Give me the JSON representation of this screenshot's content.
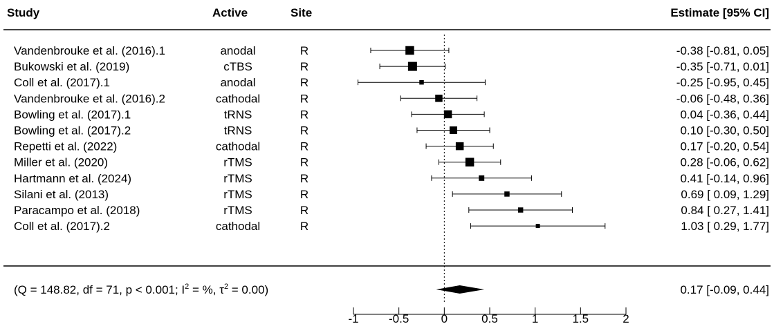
{
  "chart_data": {
    "type": "forest",
    "headers": {
      "study": "Study",
      "active": "Active",
      "site": "Site",
      "estimate": "Estimate [95% CI]"
    },
    "studies": [
      {
        "study": "Vandenbrouke et al. (2016).1",
        "active": "anodal",
        "site": "R",
        "estimate": -0.38,
        "lower": -0.81,
        "upper": 0.05,
        "label": "-0.38 [-0.81, 0.05]",
        "weight": 0.95
      },
      {
        "study": "Bukowski et al. (2019)",
        "active": "cTBS",
        "site": "R",
        "estimate": -0.35,
        "lower": -0.71,
        "upper": 0.01,
        "label": "-0.35 [-0.71, 0.01]",
        "weight": 1.0
      },
      {
        "study": "Coll et al. (2017).1",
        "active": "anodal",
        "site": "R",
        "estimate": -0.25,
        "lower": -0.95,
        "upper": 0.45,
        "label": "-0.25 [-0.95, 0.45]",
        "weight": 0.35
      },
      {
        "study": "Vandenbrouke et al. (2016).2",
        "active": "cathodal",
        "site": "R",
        "estimate": -0.06,
        "lower": -0.48,
        "upper": 0.36,
        "label": "-0.06 [-0.48, 0.36]",
        "weight": 0.75
      },
      {
        "study": "Bowling et al. (2017).1",
        "active": "tRNS",
        "site": "R",
        "estimate": 0.04,
        "lower": -0.36,
        "upper": 0.44,
        "label": "0.04 [-0.36, 0.44]",
        "weight": 0.85
      },
      {
        "study": "Bowling et al. (2017).2",
        "active": "tRNS",
        "site": "R",
        "estimate": 0.1,
        "lower": -0.3,
        "upper": 0.5,
        "label": "0.10 [-0.30, 0.50]",
        "weight": 0.8
      },
      {
        "study": "Repetti et al. (2022)",
        "active": "cathodal",
        "site": "R",
        "estimate": 0.17,
        "lower": -0.2,
        "upper": 0.54,
        "label": "0.17 [-0.20, 0.54]",
        "weight": 0.85
      },
      {
        "study": "Miller et al. (2020)",
        "active": "rTMS",
        "site": "R",
        "estimate": 0.28,
        "lower": -0.06,
        "upper": 0.62,
        "label": "0.28 [-0.06, 0.62]",
        "weight": 0.95
      },
      {
        "study": "Hartmann et al. (2024)",
        "active": "rTMS",
        "site": "R",
        "estimate": 0.41,
        "lower": -0.14,
        "upper": 0.96,
        "label": "0.41 [-0.14, 0.96]",
        "weight": 0.5
      },
      {
        "study": "Silani et al. (2013)",
        "active": "rTMS",
        "site": "R",
        "estimate": 0.69,
        "lower": 0.09,
        "upper": 1.29,
        "label": "0.69 [ 0.09, 1.29]",
        "weight": 0.45
      },
      {
        "study": "Paracampo et al. (2018)",
        "active": "rTMS",
        "site": "R",
        "estimate": 0.84,
        "lower": 0.27,
        "upper": 1.41,
        "label": "0.84 [ 0.27, 1.41]",
        "weight": 0.45
      },
      {
        "study": "Coll et al. (2017).2",
        "active": "cathodal",
        "site": "R",
        "estimate": 1.03,
        "lower": 0.29,
        "upper": 1.77,
        "label": "1.03 [ 0.29, 1.77]",
        "weight": 0.3
      }
    ],
    "summary": {
      "stat_text": "(Q = 148.82, df = 71, p < 0.001; I",
      "sup1": "2",
      "mid_text": " = %, τ",
      "sup2": "2",
      "end_text": " = 0.00)",
      "estimate": 0.17,
      "lower": -0.09,
      "upper": 0.44,
      "label": "0.17 [-0.09, 0.44]"
    },
    "x_axis": {
      "ticks": [
        -1,
        -0.5,
        0,
        0.5,
        1,
        1.5,
        2
      ],
      "tick_labels": [
        "-1",
        "-0.5",
        "0",
        "0.5",
        "1",
        "1.5",
        "2"
      ],
      "xlim": [
        -1,
        2
      ],
      "reference_line": 0
    }
  }
}
